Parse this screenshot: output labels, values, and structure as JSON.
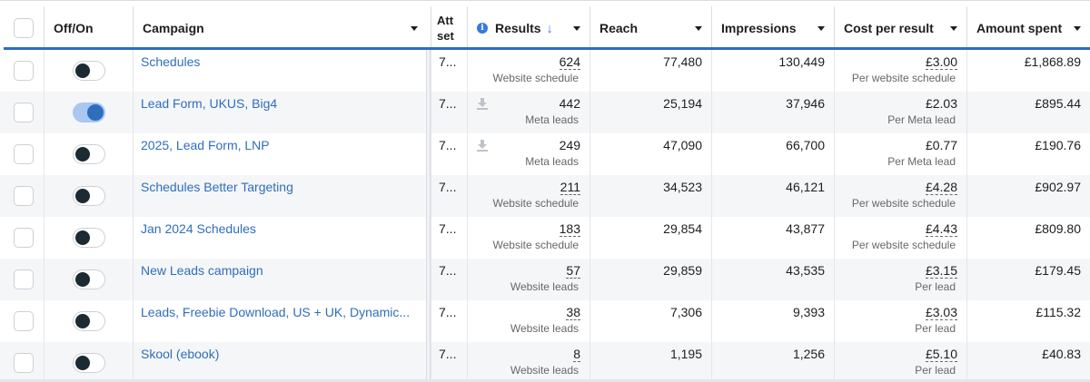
{
  "header": {
    "off_on": "Off/On",
    "campaign": "Campaign",
    "att": "Att set",
    "results": "Results",
    "reach": "Reach",
    "impressions": "Impressions",
    "cost_per_result": "Cost per result",
    "amount_spent": "Amount spent"
  },
  "icons": {
    "info": "info-icon",
    "sort": "arrow-down-icon",
    "dropdown": "caret-down-icon",
    "download": "download-icon"
  },
  "colors": {
    "accent": "#2f6ebd",
    "link": "#2f6ebd",
    "toggle_on": "#2f6ebd",
    "toggle_off_knob": "#1c2b33"
  },
  "rows": [
    {
      "on": false,
      "campaign": "Schedules",
      "att": "7...",
      "results": "624",
      "results_type": "Website schedule",
      "results_dotted": true,
      "download": false,
      "reach": "77,480",
      "impressions": "130,449",
      "cost": "£3.00",
      "cost_type": "Per website schedule",
      "cost_dotted": true,
      "spent": "£1,868.89"
    },
    {
      "on": true,
      "campaign": "Lead Form, UKUS, Big4",
      "att": "7...",
      "results": "442",
      "results_type": "Meta leads",
      "results_dotted": false,
      "download": true,
      "reach": "25,194",
      "impressions": "37,946",
      "cost": "£2.03",
      "cost_type": "Per Meta lead",
      "cost_dotted": false,
      "spent": "£895.44"
    },
    {
      "on": false,
      "campaign": "2025, Lead Form, LNP",
      "att": "7...",
      "results": "249",
      "results_type": "Meta leads",
      "results_dotted": false,
      "download": true,
      "reach": "47,090",
      "impressions": "66,700",
      "cost": "£0.77",
      "cost_type": "Per Meta lead",
      "cost_dotted": false,
      "spent": "£190.76"
    },
    {
      "on": false,
      "campaign": "Schedules Better Targeting",
      "att": "7...",
      "results": "211",
      "results_type": "Website schedule",
      "results_dotted": true,
      "download": false,
      "reach": "34,523",
      "impressions": "46,121",
      "cost": "£4.28",
      "cost_type": "Per website schedule",
      "cost_dotted": true,
      "spent": "£902.97"
    },
    {
      "on": false,
      "campaign": "Jan 2024 Schedules",
      "att": "7...",
      "results": "183",
      "results_type": "Website schedule",
      "results_dotted": true,
      "download": false,
      "reach": "29,854",
      "impressions": "43,877",
      "cost": "£4.43",
      "cost_type": "Per website schedule",
      "cost_dotted": true,
      "spent": "£809.80"
    },
    {
      "on": false,
      "campaign": "New Leads campaign",
      "att": "7...",
      "results": "57",
      "results_type": "Website leads",
      "results_dotted": true,
      "download": false,
      "reach": "29,859",
      "impressions": "43,535",
      "cost": "£3.15",
      "cost_type": "Per lead",
      "cost_dotted": true,
      "spent": "£179.45"
    },
    {
      "on": false,
      "campaign": "Leads, Freebie Download, US + UK, Dynamic...",
      "att": "7...",
      "results": "38",
      "results_type": "Website leads",
      "results_dotted": true,
      "download": false,
      "reach": "7,306",
      "impressions": "9,393",
      "cost": "£3.03",
      "cost_type": "Per lead",
      "cost_dotted": true,
      "spent": "£115.32"
    },
    {
      "on": false,
      "campaign": "Skool (ebook)",
      "att": "7...",
      "results": "8",
      "results_type": "Website leads",
      "results_dotted": true,
      "download": false,
      "reach": "1,195",
      "impressions": "1,256",
      "cost": "£5.10",
      "cost_type": "Per lead",
      "cost_dotted": true,
      "spent": "£40.83"
    }
  ]
}
